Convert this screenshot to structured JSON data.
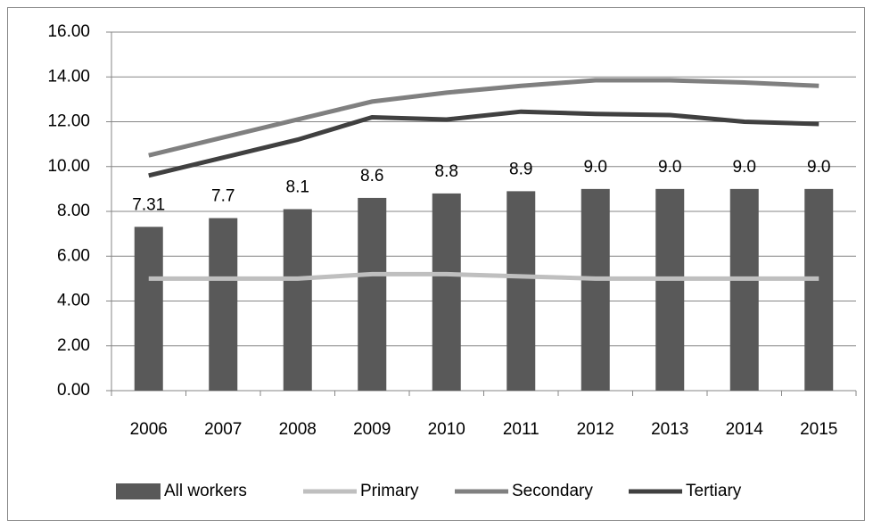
{
  "chart_data": {
    "type": "bar",
    "categories": [
      "2006",
      "2007",
      "2008",
      "2009",
      "2010",
      "2011",
      "2012",
      "2013",
      "2014",
      "2015"
    ],
    "series": [
      {
        "name": "All workers",
        "type": "bar",
        "color": "#595959",
        "values": [
          7.31,
          7.7,
          8.1,
          8.6,
          8.8,
          8.9,
          9.0,
          9.0,
          9.0,
          9.0
        ],
        "value_labels": [
          "7.31",
          "7.7",
          "8.1",
          "8.6",
          "8.8",
          "8.9",
          "9.0",
          "9.0",
          "9.0",
          "9.0"
        ]
      },
      {
        "name": "Primary",
        "type": "line",
        "color": "#bfbfbf",
        "values": [
          5.0,
          5.0,
          5.0,
          5.2,
          5.2,
          5.1,
          5.0,
          5.0,
          5.0,
          5.0
        ]
      },
      {
        "name": "Secondary",
        "type": "line",
        "color": "#808080",
        "values": [
          10.5,
          11.3,
          12.1,
          12.9,
          13.3,
          13.6,
          13.85,
          13.85,
          13.75,
          13.6
        ]
      },
      {
        "name": "Tertiary",
        "type": "line",
        "color": "#404040",
        "values": [
          9.6,
          10.4,
          11.2,
          12.2,
          12.1,
          12.45,
          12.35,
          12.3,
          12.0,
          11.9
        ]
      }
    ],
    "ylim": [
      0,
      16
    ],
    "yticks": [
      {
        "value": 0,
        "label": "0.00"
      },
      {
        "value": 2,
        "label": "2.00"
      },
      {
        "value": 4,
        "label": "4.00"
      },
      {
        "value": 6,
        "label": "6.00"
      },
      {
        "value": 8,
        "label": "8.00"
      },
      {
        "value": 10,
        "label": "10.00"
      },
      {
        "value": 12,
        "label": "12.00"
      },
      {
        "value": 14,
        "label": "14.00"
      },
      {
        "value": 16,
        "label": "16.00"
      }
    ],
    "grid": true,
    "legend": "bottom"
  }
}
